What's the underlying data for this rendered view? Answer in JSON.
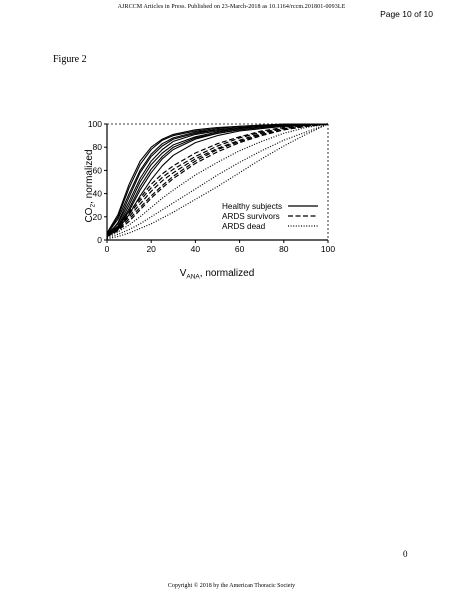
{
  "header": {
    "journal_line": "AJRCCM Articles in Press. Published on 23-March-2018 as 10.1164/rccm.201801-0093LE",
    "page_label": "Page 10 of 10"
  },
  "figure_label": "Figure 2",
  "page_number": "0",
  "footer": {
    "copyright": "Copyright © 2018 by the American Thoracic Society"
  },
  "chart_data": {
    "type": "line",
    "title": "",
    "xlabel_main": "V",
    "xlabel_sub": "ANA",
    "xlabel_rest": ", normalized",
    "ylabel_main": "CO",
    "ylabel_sub": "2",
    "ylabel_rest": ", normalized",
    "xlim": [
      0,
      100
    ],
    "ylim": [
      0,
      100
    ],
    "x_ticks": [
      "0",
      "20",
      "40",
      "60",
      "80",
      "100"
    ],
    "y_ticks": [
      "0",
      "20",
      "40",
      "60",
      "80",
      "100"
    ],
    "grid": false,
    "legend_placement": "bottom-right",
    "legend": [
      {
        "label": "Healthy subjects",
        "style": "solid"
      },
      {
        "label": "ARDS survivors",
        "style": "dashed"
      },
      {
        "label": "ARDS dead",
        "style": "dotted"
      }
    ],
    "x": [
      0,
      5,
      10,
      15,
      20,
      25,
      30,
      40,
      50,
      60,
      70,
      80,
      90,
      100
    ],
    "series": [
      {
        "group": "Healthy subjects",
        "style": "solid",
        "values": [
          5,
          20,
          45,
          65,
          78,
          86,
          90,
          94,
          96,
          98,
          99,
          99,
          100,
          100
        ]
      },
      {
        "group": "Healthy subjects",
        "style": "solid",
        "values": [
          3,
          15,
          37,
          58,
          72,
          81,
          87,
          92,
          95,
          97,
          98,
          99,
          99,
          100
        ]
      },
      {
        "group": "Healthy subjects",
        "style": "solid",
        "values": [
          4,
          12,
          30,
          50,
          65,
          75,
          82,
          89,
          93,
          96,
          98,
          99,
          99,
          100
        ]
      },
      {
        "group": "Healthy subjects",
        "style": "solid",
        "values": [
          5,
          18,
          40,
          60,
          74,
          83,
          88,
          93,
          95,
          97,
          98,
          99,
          100,
          100
        ]
      },
      {
        "group": "Healthy subjects",
        "style": "solid",
        "values": [
          4,
          10,
          25,
          43,
          58,
          70,
          78,
          87,
          92,
          95,
          97,
          98,
          99,
          100
        ]
      },
      {
        "group": "Healthy subjects",
        "style": "solid",
        "values": [
          6,
          22,
          48,
          68,
          80,
          87,
          91,
          95,
          97,
          98,
          99,
          100,
          100,
          100
        ]
      },
      {
        "group": "Healthy subjects",
        "style": "solid",
        "values": [
          3,
          9,
          22,
          38,
          52,
          64,
          73,
          84,
          90,
          94,
          96,
          98,
          99,
          100
        ]
      },
      {
        "group": "Healthy subjects",
        "style": "solid",
        "values": [
          5,
          14,
          33,
          53,
          68,
          78,
          85,
          91,
          94,
          96,
          98,
          99,
          100,
          100
        ]
      },
      {
        "group": "Healthy subjects",
        "style": "solid",
        "values": [
          4,
          11,
          27,
          46,
          61,
          72,
          80,
          88,
          92,
          95,
          97,
          98,
          99,
          100
        ]
      },
      {
        "group": "ARDS survivors",
        "style": "dashed",
        "values": [
          4,
          10,
          20,
          31,
          42,
          51,
          58,
          70,
          79,
          86,
          92,
          96,
          98,
          100
        ]
      },
      {
        "group": "ARDS survivors",
        "style": "dashed",
        "values": [
          5,
          12,
          24,
          36,
          48,
          57,
          64,
          75,
          83,
          89,
          94,
          97,
          99,
          100
        ]
      },
      {
        "group": "ARDS survivors",
        "style": "dashed",
        "values": [
          3,
          8,
          16,
          26,
          36,
          45,
          53,
          66,
          76,
          84,
          90,
          95,
          98,
          100
        ]
      },
      {
        "group": "ARDS survivors",
        "style": "dashed",
        "values": [
          5,
          11,
          22,
          34,
          45,
          54,
          61,
          72,
          81,
          88,
          93,
          96,
          99,
          100
        ]
      },
      {
        "group": "ARDS survivors",
        "style": "dashed",
        "values": [
          4,
          9,
          18,
          28,
          38,
          47,
          55,
          68,
          78,
          85,
          91,
          95,
          98,
          100
        ]
      },
      {
        "group": "ARDS dead",
        "style": "dotted",
        "values": [
          2,
          5,
          9,
          14,
          20,
          26,
          32,
          44,
          56,
          67,
          77,
          86,
          93,
          100
        ]
      },
      {
        "group": "ARDS dead",
        "style": "dotted",
        "values": [
          3,
          7,
          13,
          20,
          28,
          36,
          43,
          56,
          67,
          77,
          85,
          92,
          97,
          100
        ]
      },
      {
        "group": "ARDS dead",
        "style": "dotted",
        "values": [
          1,
          3,
          6,
          10,
          14,
          19,
          24,
          35,
          46,
          58,
          70,
          81,
          91,
          100
        ]
      }
    ]
  }
}
